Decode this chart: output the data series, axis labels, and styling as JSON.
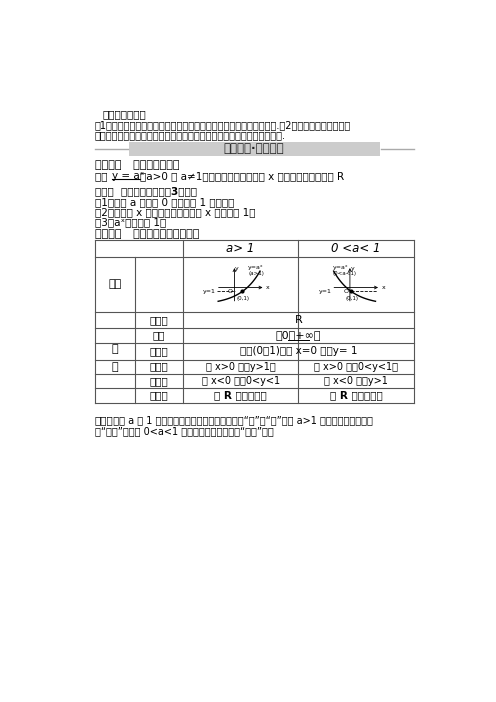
{
  "title_standard": "最新课程标准：",
  "standard_line1": "（1）通过具体实例，了解指数函数的实际意义，理解指数函数的概念.（2）能用描点法或借助计",
  "standard_line2": "算工具画出具体指数函数的图象，探索并理解指数函数的单调性与特殊点.",
  "section_banner": "新知探索·自主学习",
  "knowledge1_title": "知识点一   指数函数的定义",
  "knowledge1_def1": "函数 ",
  "knowledge1_def2": "y = aˣ",
  "knowledge1_def3": "（a>0 且 a≠1）叫做指数函数，其中 x 是自变量，定义域为 R",
  "mistake1_title": "精讲！  指数函数解析式的3个特征",
  "mistake1_1": "（1）底数 a 为大于 0 且不等于 1 的常数．",
  "mistake1_2": "（2）自变量 x 的位置在指数上，且 x 的系数是 1．",
  "mistake1_3": "（3）aˣ的系数是 1．",
  "knowledge2_title": "知识点二   指数函数的图象与性质",
  "table_col1": "a> 1",
  "table_col2": "0 <a< 1",
  "row_image": "图象",
  "row_domain_label": "定义域",
  "row_domain_val": "R",
  "row_range_label": "值域",
  "row_range_val": "（0，+∞）",
  "row_passing_label": "过定点",
  "row_passing_val": "过点(0，1)，即 x=0 时，y= 1",
  "row_mono_label1": "函数值",
  "row_mono_label2": "的变化",
  "row_mono_a1_1": "当 x>0 时，y>1；",
  "row_mono_a1_2": "当 x<0 时，0<y<1",
  "row_mono_a2_1": "当 x>0 时，0<y<1；",
  "row_mono_a2_2": "当 x<0 时，y>1",
  "row_single_label": "单调性",
  "row_single_a1": "是 R 上的增函数",
  "row_single_a2": "是 R 上的减函数",
  "prop_label": "性\n质",
  "mistake2_bold": "精讲！",
  "mistake2_line1": "  底数 a 与 1 的大小关系决定了指数函数图象的“升”与“降”。当 a>1 时，指数函数的图象",
  "mistake2_line2": "是“上升”的；当 0<a<1 时，指数函数的图象是“下降”的。",
  "bg_color": "#ffffff",
  "table_border": "#555555"
}
